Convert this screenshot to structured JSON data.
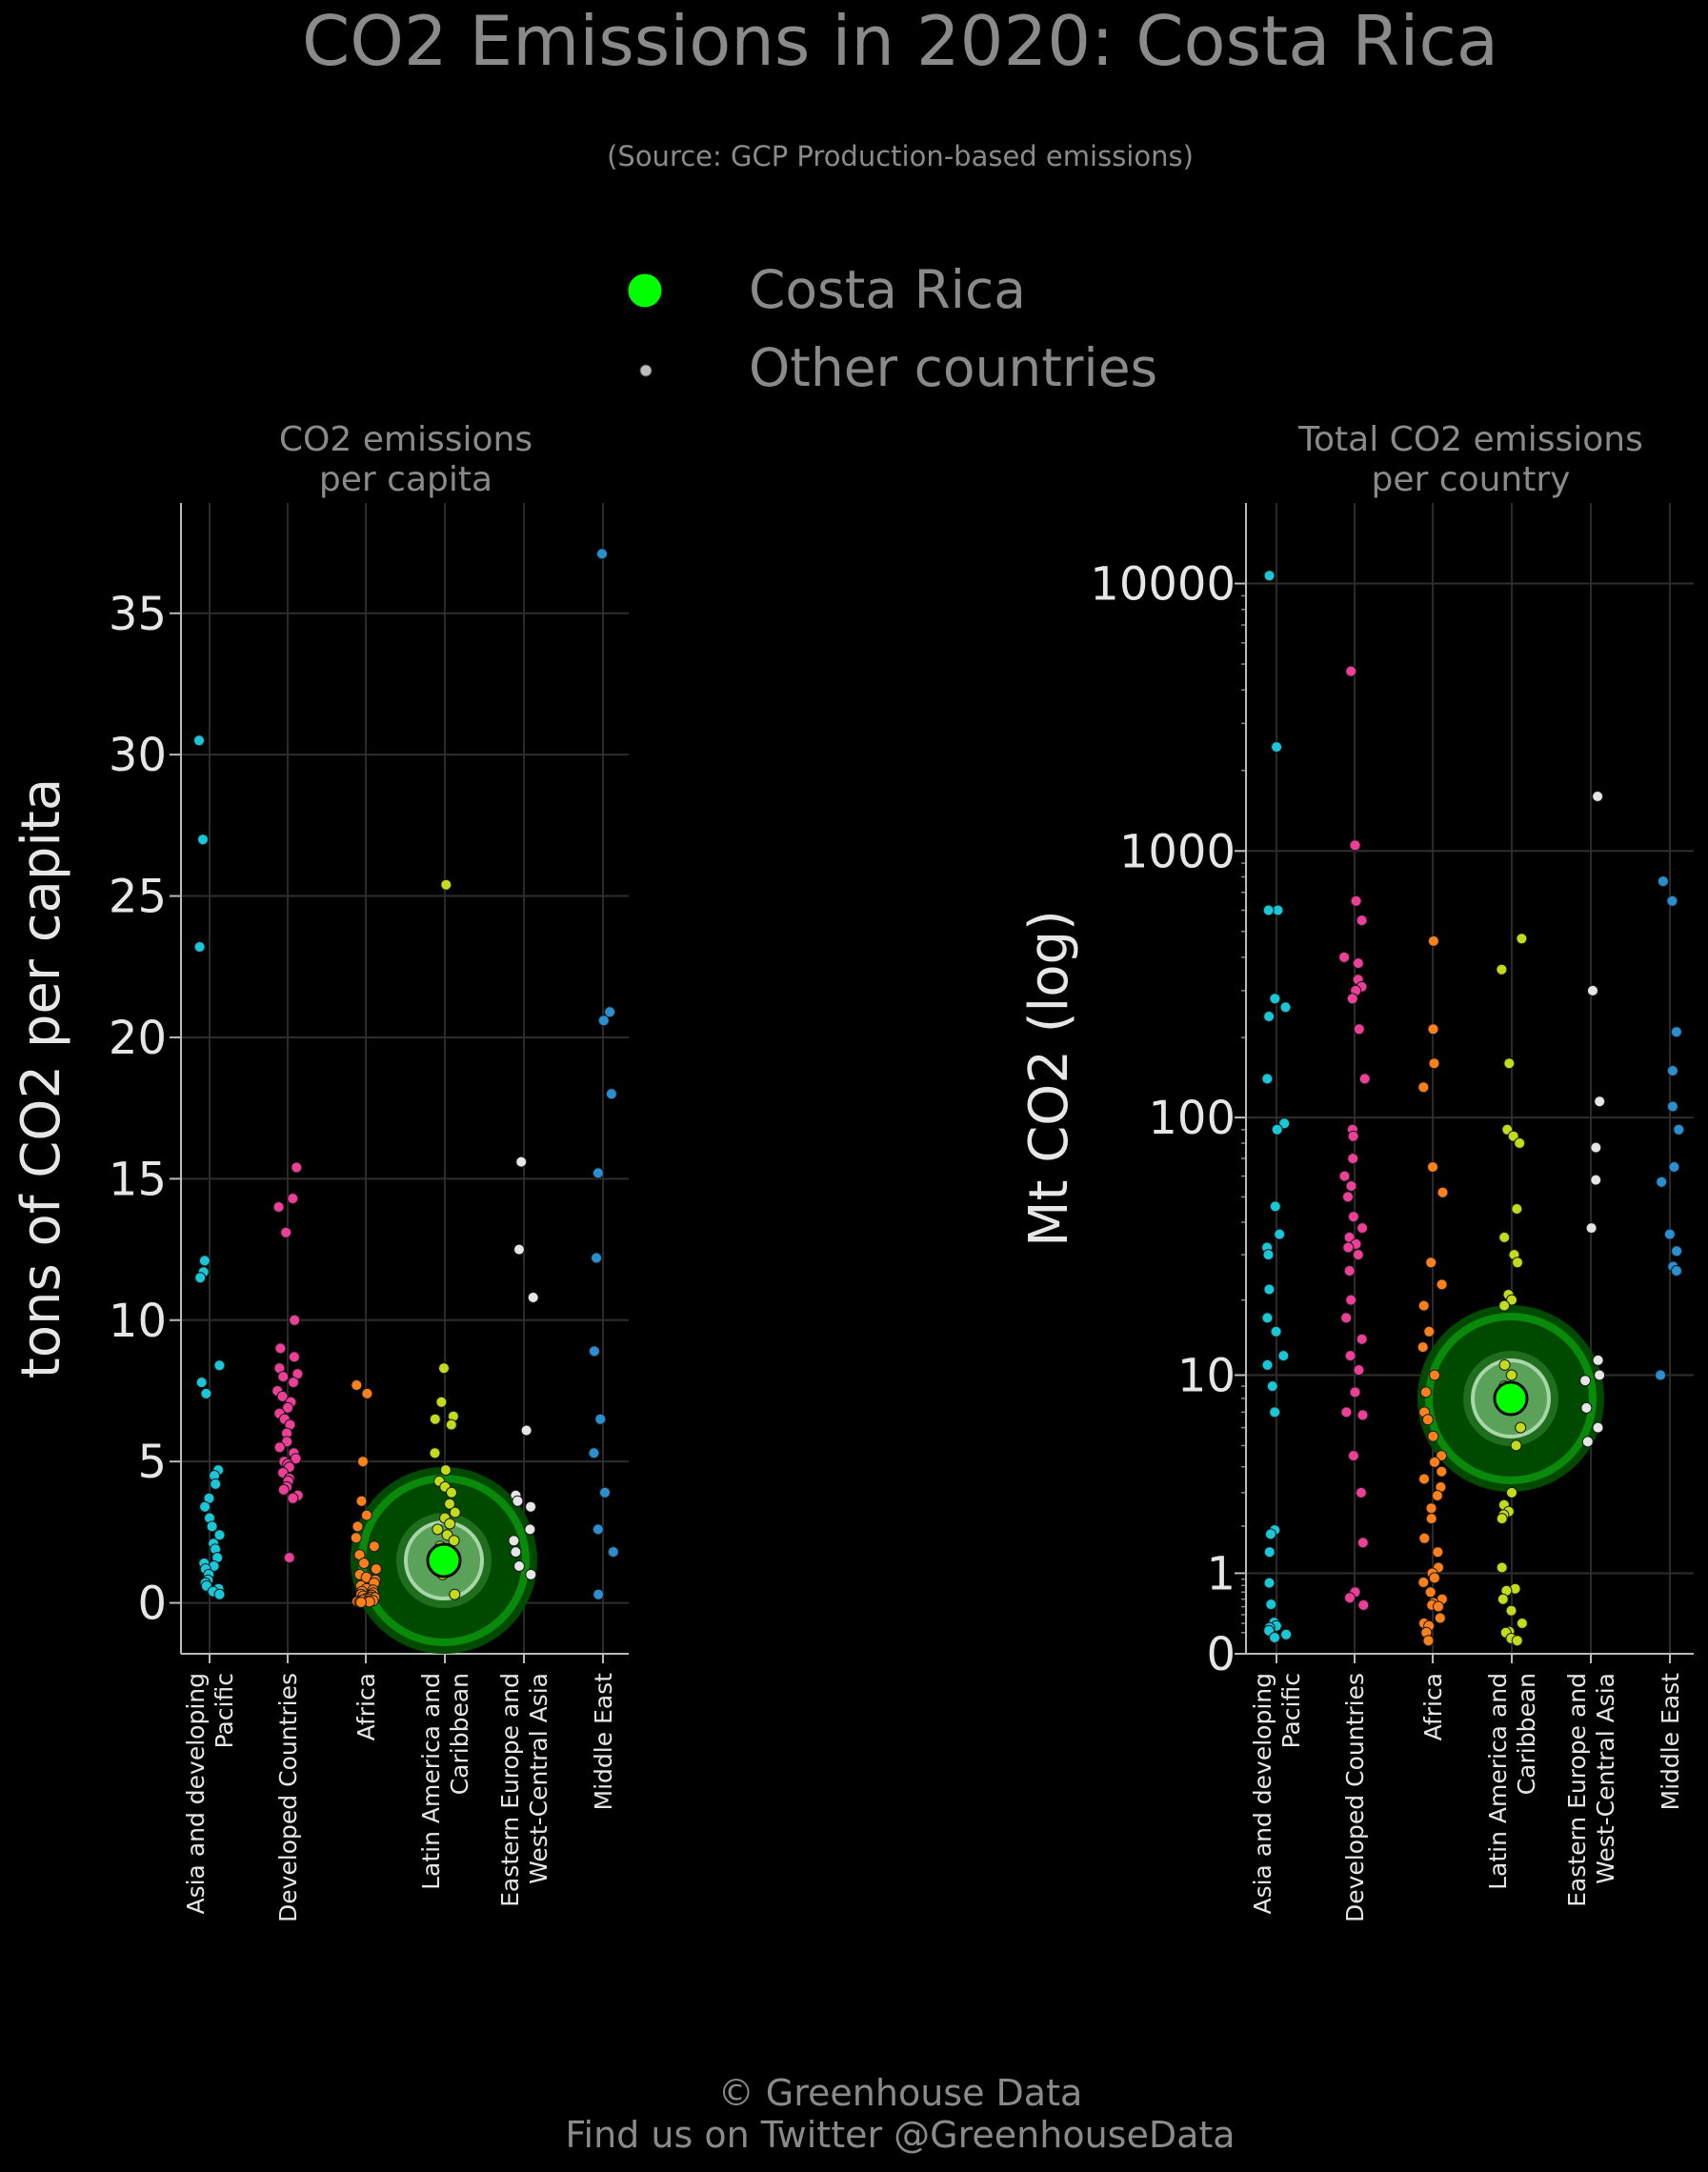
{
  "title": "CO2 Emissions in 2020: Costa Rica",
  "subtitle": "(Source: GCP Production-based emissions)",
  "legend": {
    "highlight_label": "Costa Rica",
    "other_label": "Other countries",
    "highlight_color": "#00ff00",
    "other_color": "#bdbdbd"
  },
  "footer": {
    "line1": "© Greenhouse Data",
    "line2": "Find us on Twitter @GreenhouseData"
  },
  "colors": {
    "Asia and developing Pacific": "#19c8d8",
    "Developed Countries": "#ee3f98",
    "Africa": "#ff7f1a",
    "Latin America and Caribbean": "#c2dc1c",
    "Eastern Europe and West-Central Asia": "#e6e6e6",
    "Middle East": "#2a8fd0"
  },
  "chart_data": [
    {
      "type": "scatter",
      "panel_title": [
        "CO2 emissions",
        "per capita"
      ],
      "ylabel": "tons of CO2 per capita",
      "yscale": "linear",
      "ylim": [
        -1.8,
        38.9
      ],
      "yticks": [
        0,
        5,
        10,
        15,
        20,
        25,
        30,
        35
      ],
      "ytick_labels": [
        "0",
        "5",
        "10",
        "15",
        "20",
        "25",
        "30",
        "35"
      ],
      "grid": true,
      "categories": [
        [
          "Asia and developing",
          "Pacific"
        ],
        [
          "Developed Countries"
        ],
        [
          "Africa"
        ],
        [
          "Latin America and",
          "Caribbean"
        ],
        [
          "Eastern Europe and",
          "West-Central Asia"
        ],
        [
          "Middle East"
        ]
      ],
      "highlight": {
        "name": "Costa Rica",
        "category": 3,
        "value": 1.5
      },
      "series": [
        {
          "category": "Asia and developing Pacific",
          "values": [
            30.5,
            27.0,
            23.2,
            12.1,
            11.7,
            11.5,
            8.4,
            7.8,
            7.4,
            4.7,
            4.5,
            4.2,
            3.7,
            3.4,
            3.0,
            2.7,
            2.4,
            2.1,
            1.9,
            1.6,
            1.4,
            1.3,
            1.2,
            1.0,
            0.8,
            0.7,
            0.6,
            0.5,
            0.4,
            0.3
          ]
        },
        {
          "category": "Developed Countries",
          "values": [
            15.4,
            14.3,
            14.0,
            13.1,
            10.0,
            9.0,
            8.7,
            8.3,
            8.1,
            8.0,
            7.8,
            7.5,
            7.3,
            7.1,
            6.9,
            6.7,
            6.5,
            6.3,
            6.0,
            5.7,
            5.5,
            5.3,
            5.1,
            5.0,
            4.9,
            4.8,
            4.6,
            4.4,
            4.3,
            4.1,
            4.0,
            3.8,
            3.7,
            1.6
          ]
        },
        {
          "category": "Africa",
          "values": [
            7.7,
            7.4,
            5.0,
            3.6,
            3.1,
            2.7,
            2.3,
            2.0,
            1.7,
            1.4,
            1.2,
            1.0,
            0.9,
            0.8,
            0.7,
            0.6,
            0.5,
            0.45,
            0.4,
            0.35,
            0.3,
            0.27,
            0.24,
            0.2,
            0.18,
            0.15,
            0.13,
            0.1,
            0.08,
            0.06,
            0.05,
            0.04,
            0.03,
            0.02
          ]
        },
        {
          "category": "Latin America and Caribbean",
          "values": [
            25.4,
            8.3,
            7.1,
            6.6,
            6.5,
            6.3,
            5.3,
            4.7,
            4.3,
            4.1,
            3.9,
            3.5,
            3.2,
            3.0,
            2.8,
            2.6,
            2.4,
            2.2,
            2.0,
            1.8,
            1.4,
            1.2,
            1.0,
            0.3
          ]
        },
        {
          "category": "Eastern Europe and West-Central Asia",
          "values": [
            15.6,
            12.5,
            10.8,
            6.1,
            3.8,
            3.6,
            3.4,
            2.6,
            2.2,
            1.8,
            1.3,
            1.0
          ]
        },
        {
          "category": "Middle East",
          "values": [
            37.1,
            20.9,
            20.6,
            18.0,
            15.2,
            12.2,
            8.9,
            6.5,
            5.3,
            3.9,
            2.6,
            1.8,
            0.3
          ]
        }
      ]
    },
    {
      "type": "scatter",
      "panel_title": [
        "Total CO2 emissions",
        "per country"
      ],
      "ylabel": "Mt CO2 (log)",
      "yscale": "log",
      "ylim": [
        0.0,
        20000
      ],
      "yticks": [
        1,
        10,
        100,
        1000,
        10000
      ],
      "ytick_labels": [
        "1",
        "10",
        "100",
        "1000",
        "10000"
      ],
      "ybottom_label": "0",
      "grid": true,
      "categories": [
        [
          "Asia and developing",
          "Pacific"
        ],
        [
          "Developed Countries"
        ],
        [
          "Africa"
        ],
        [
          "Latin America and",
          "Caribbean"
        ],
        [
          "Eastern Europe and",
          "West-Central Asia"
        ],
        [
          "Middle East"
        ]
      ],
      "highlight": {
        "name": "Costa Rica",
        "category": 3,
        "value": 8
      },
      "series": [
        {
          "category": "Asia and developing Pacific",
          "values": [
            10700,
            2450,
            600,
            600,
            280,
            260,
            240,
            140,
            95,
            90,
            46,
            36,
            32,
            30,
            22,
            17,
            15,
            12,
            11,
            9,
            7,
            1.9,
            1.8,
            1.4,
            0.84,
            0.53,
            0.31,
            0.27,
            0.25,
            0.22,
            0.18,
            0.15
          ]
        },
        {
          "category": "Developed Countries",
          "values": [
            4700,
            1050,
            650,
            550,
            400,
            380,
            330,
            310,
            300,
            280,
            215,
            140,
            90,
            85,
            70,
            60,
            55,
            50,
            42,
            38,
            35,
            33,
            32,
            30,
            26,
            20,
            17,
            14,
            12,
            10.5,
            8.5,
            7,
            6.8,
            4.5,
            3,
            1.6,
            0.7,
            0.62,
            0.52
          ]
        },
        {
          "category": "Africa",
          "values": [
            460,
            215,
            160,
            130,
            65,
            52,
            28,
            23,
            19,
            15,
            13,
            10,
            8.5,
            7,
            6.5,
            5.5,
            4.5,
            4.2,
            3.8,
            3.5,
            3.2,
            2.9,
            2.5,
            2.2,
            1.7,
            1.4,
            1.1,
            1.0,
            0.92,
            0.85,
            0.7,
            0.6,
            0.55,
            0.52,
            0.5,
            0.36,
            0.3,
            0.27,
            0.2,
            0.12
          ]
        },
        {
          "category": "Latin America and Caribbean",
          "values": [
            470,
            360,
            160,
            90,
            85,
            80,
            45,
            35,
            30,
            28,
            21,
            20,
            19,
            11,
            10,
            9,
            8.5,
            6,
            5,
            3,
            2.6,
            2.4,
            2.3,
            2.2,
            1.1,
            0.75,
            0.72,
            0.6,
            0.45,
            0.3,
            0.21,
            0.2,
            0.14,
            0.12
          ]
        },
        {
          "category": "Eastern Europe and West-Central Asia",
          "values": [
            1600,
            300,
            115,
            77,
            58,
            38,
            11.5,
            10,
            9.5,
            7.3,
            6,
            5.2
          ]
        },
        {
          "category": "Middle East",
          "values": [
            770,
            650,
            210,
            150,
            110,
            90,
            65,
            57,
            36,
            31,
            27,
            26,
            10
          ]
        }
      ]
    }
  ]
}
